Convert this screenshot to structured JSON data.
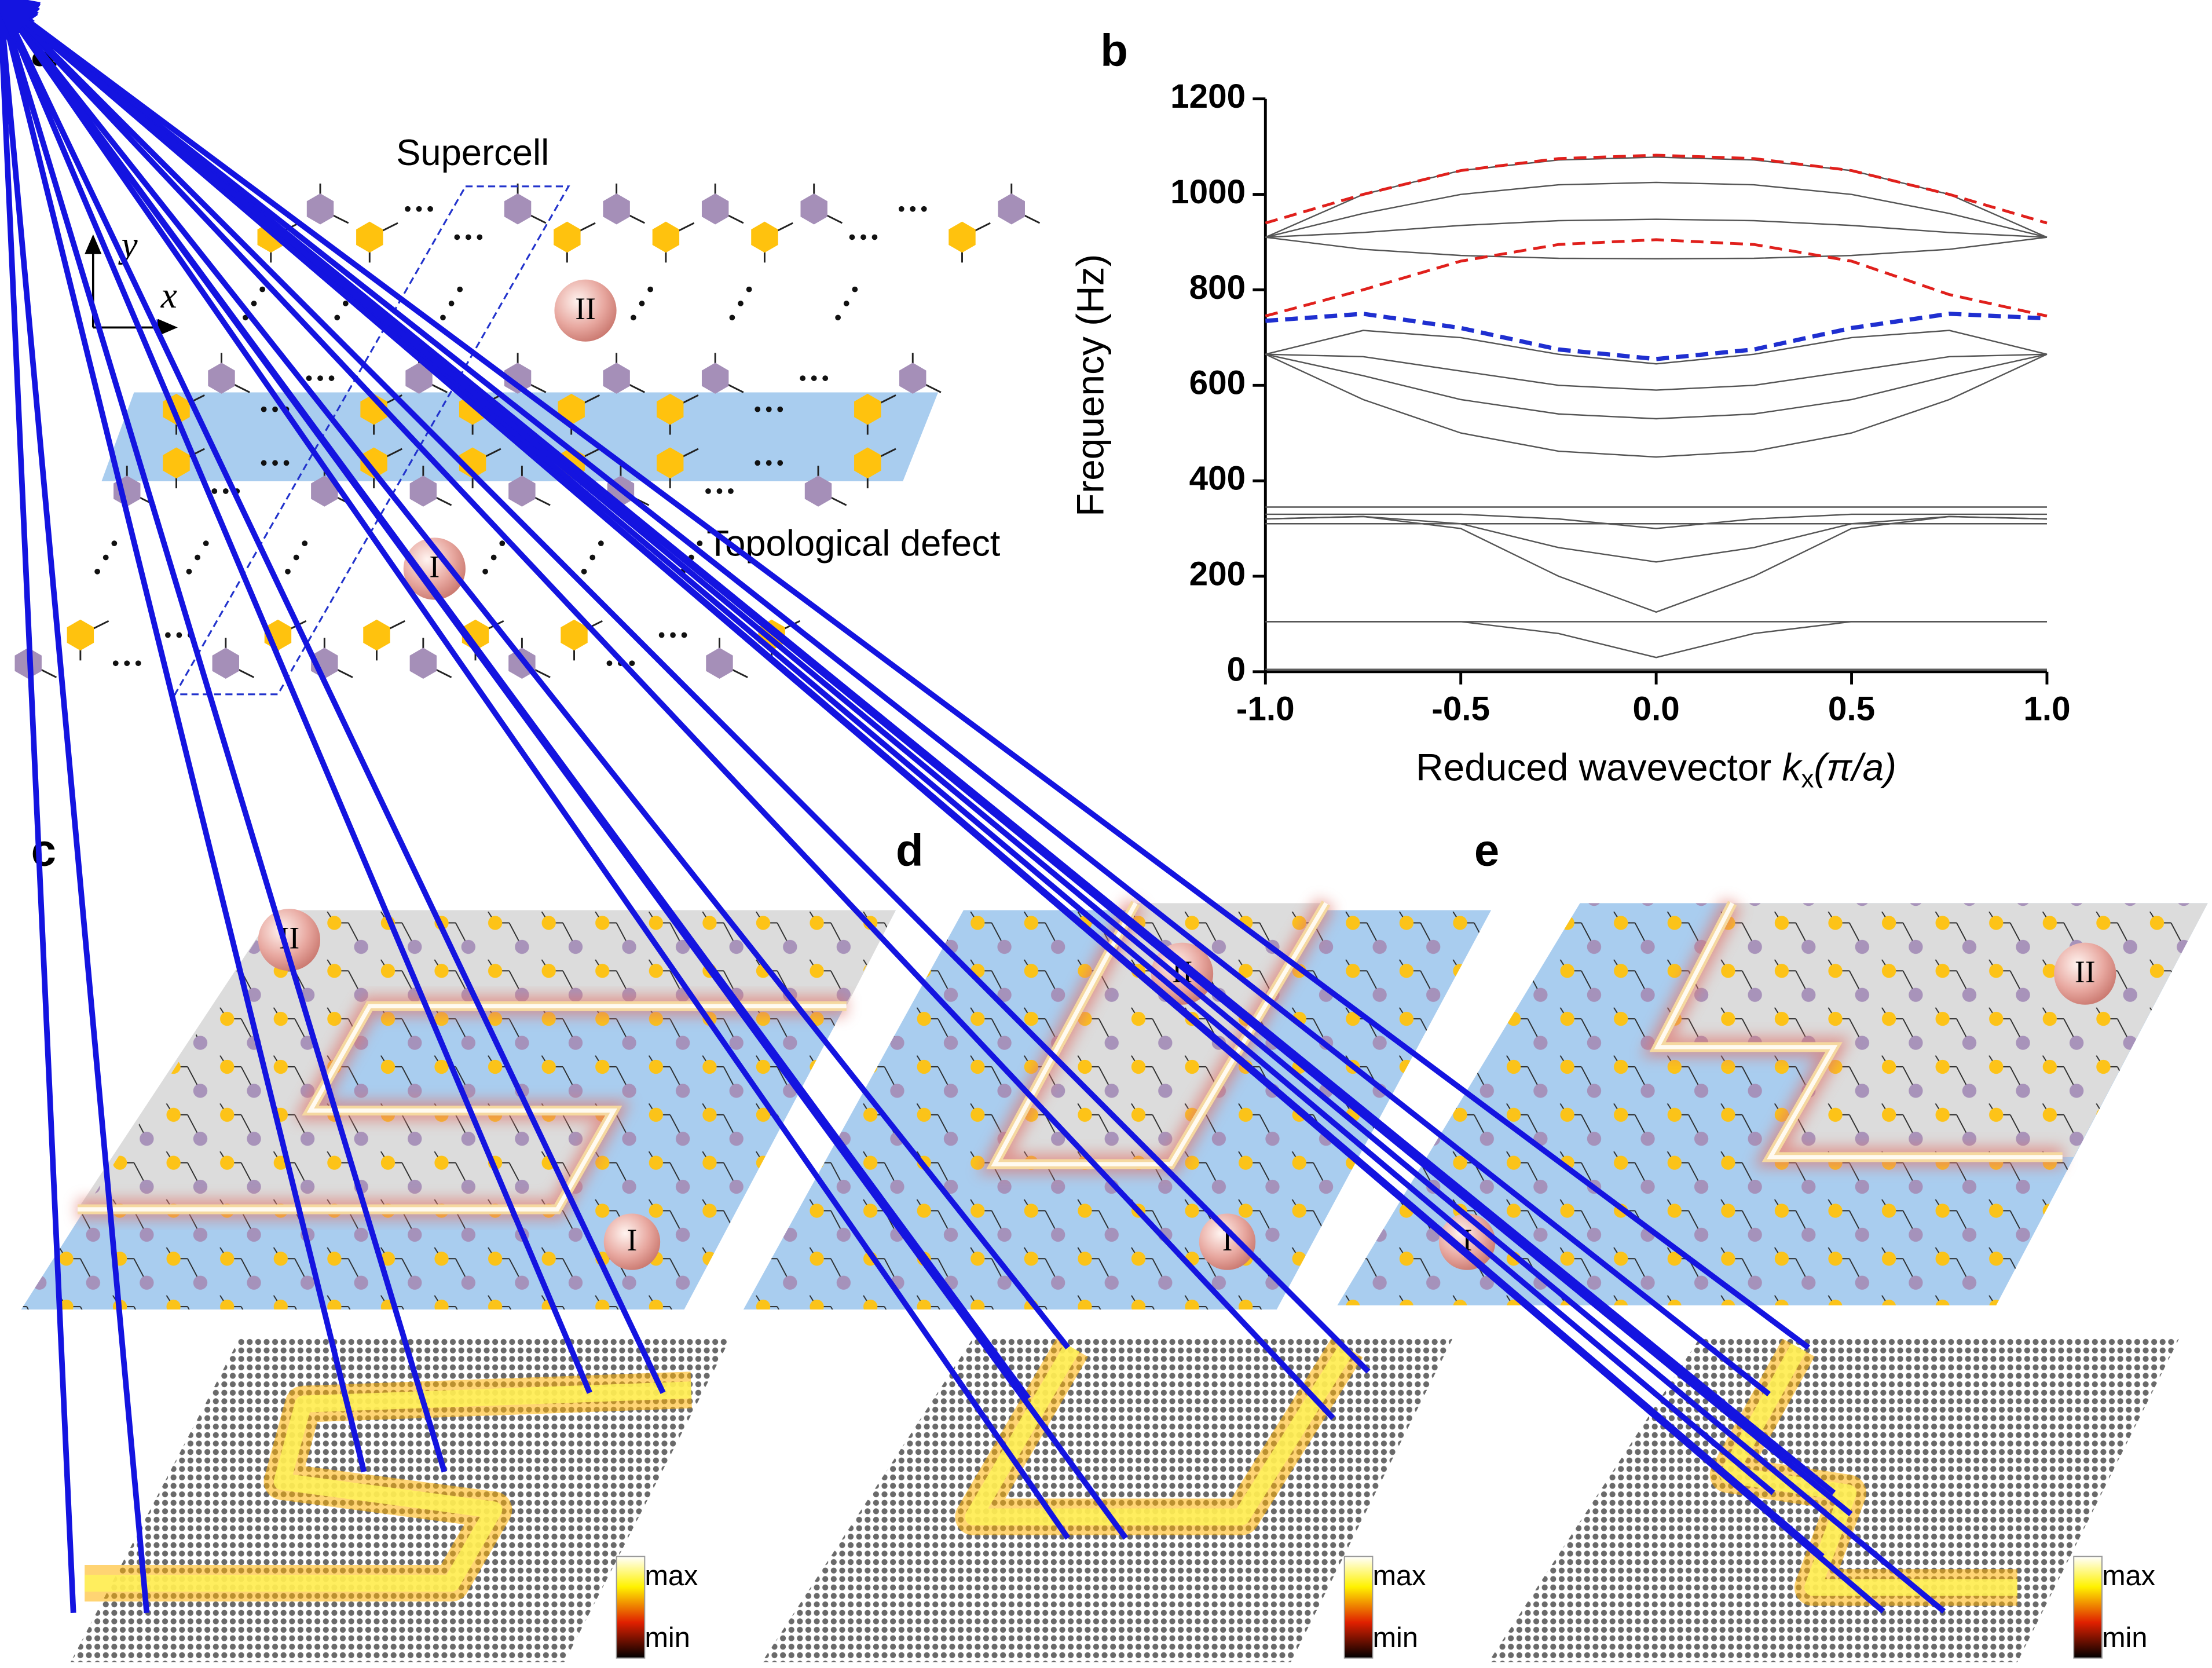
{
  "panel_labels": [
    "a",
    "b",
    "c",
    "d",
    "e"
  ],
  "panel_a": {
    "axis_y": "y",
    "axis_x": "x",
    "supercell": "Supercell",
    "defect": "Topological defect",
    "region_I": "I",
    "region_II": "II"
  },
  "panels_cde": {
    "region_I": "I",
    "region_II": "II",
    "colorbar_max": "max",
    "colorbar_min": "min"
  },
  "chart_data": {
    "type": "line",
    "y_label": "Frequency (Hz)",
    "x_label": {
      "text": "Reduced wavevector ",
      "var": "k",
      "sub": "x",
      "unit": "(π/a)"
    },
    "x": [
      -1,
      -0.75,
      -0.5,
      -0.25,
      0,
      0.25,
      0.5,
      0.75,
      1
    ],
    "series": [
      {
        "color": "#555555",
        "values": [
          910,
          1000,
          1050,
          1072,
          1078,
          1072,
          1050,
          1000,
          910
        ]
      },
      {
        "color": "#555555",
        "values": [
          910,
          960,
          1000,
          1020,
          1025,
          1020,
          1000,
          960,
          910
        ]
      },
      {
        "color": "#555555",
        "values": [
          910,
          920,
          935,
          945,
          948,
          945,
          935,
          920,
          910
        ]
      },
      {
        "color": "#555555",
        "values": [
          910,
          885,
          872,
          866,
          865,
          866,
          872,
          885,
          910
        ]
      },
      {
        "color": "#555555",
        "values": [
          665,
          715,
          700,
          665,
          645,
          665,
          700,
          715,
          665
        ]
      },
      {
        "color": "#555555",
        "values": [
          665,
          660,
          630,
          600,
          590,
          600,
          630,
          660,
          665
        ]
      },
      {
        "color": "#555555",
        "values": [
          665,
          620,
          570,
          540,
          530,
          540,
          570,
          620,
          665
        ]
      },
      {
        "color": "#555555",
        "values": [
          665,
          570,
          500,
          462,
          450,
          462,
          500,
          570,
          665
        ]
      },
      {
        "color": "#555555",
        "values": [
          345,
          345,
          345,
          345,
          345,
          345,
          345,
          345,
          345
        ]
      },
      {
        "color": "#555555",
        "values": [
          330,
          330,
          330,
          320,
          300,
          320,
          330,
          330,
          330
        ]
      },
      {
        "color": "#555555",
        "values": [
          320,
          325,
          310,
          260,
          230,
          260,
          310,
          325,
          320
        ]
      },
      {
        "color": "#555555",
        "values": [
          320,
          325,
          300,
          200,
          125,
          200,
          300,
          325,
          320
        ]
      },
      {
        "color": "#555555",
        "values": [
          310,
          310,
          310,
          310,
          310,
          310,
          310,
          310,
          310
        ]
      },
      {
        "color": "#555555",
        "values": [
          105,
          105,
          105,
          105,
          105,
          105,
          105,
          105,
          105
        ]
      },
      {
        "color": "#555555",
        "values": [
          105,
          105,
          105,
          80,
          30,
          80,
          105,
          105,
          105
        ]
      },
      {
        "color": "#555555",
        "values": [
          5,
          5,
          5,
          5,
          5,
          5,
          5,
          5,
          5
        ]
      },
      {
        "color": "#e0201c",
        "dashed": true,
        "values": [
          940,
          1000,
          1050,
          1075,
          1082,
          1075,
          1050,
          1000,
          940
        ]
      },
      {
        "color": "#e0201c",
        "dashed": true,
        "values": [
          745,
          800,
          860,
          895,
          905,
          895,
          860,
          790,
          745
        ]
      },
      {
        "color": "#1f2fd0",
        "dashed": true,
        "values": [
          735,
          750,
          720,
          675,
          655,
          675,
          720,
          750,
          740
        ]
      }
    ],
    "xlim": [
      -1,
      1
    ],
    "xticks": [
      {
        "value": -1,
        "label": "-1.0"
      },
      -0.5,
      {
        "value": 0,
        "label": "0.0"
      },
      0.5,
      {
        "value": 1,
        "label": "1.0"
      }
    ],
    "ylim": [
      0,
      1200
    ],
    "yticks": [
      0,
      200,
      400,
      600,
      800,
      1000,
      1200
    ]
  }
}
